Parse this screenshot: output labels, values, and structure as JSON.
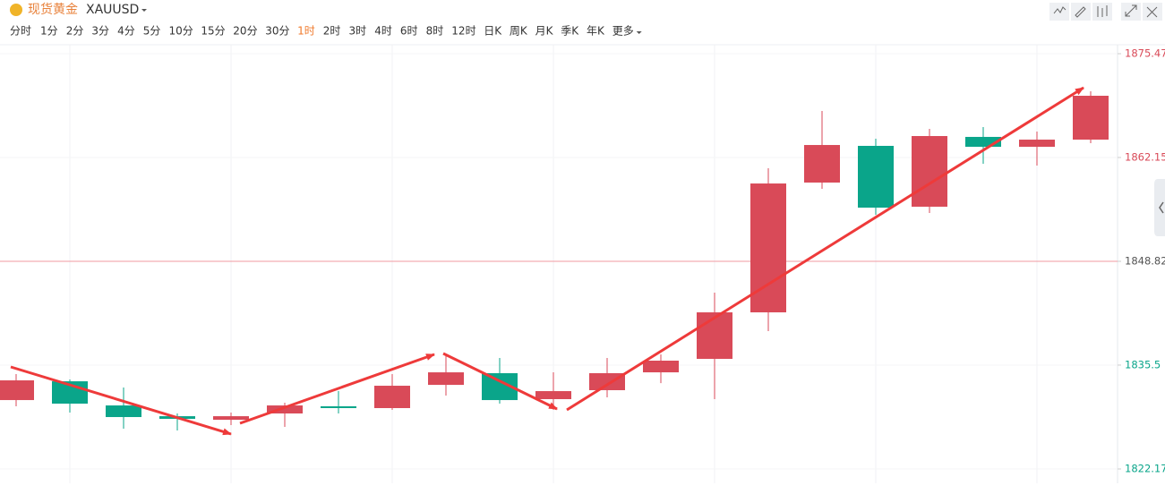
{
  "toolbar": {
    "symbol": "现货黄金",
    "code": "XAUUSD",
    "intervals": [
      "分时",
      "1分",
      "2分",
      "3分",
      "4分",
      "5分",
      "10分",
      "15分",
      "20分",
      "30分",
      "1时",
      "2时",
      "3时",
      "4时",
      "6时",
      "8时",
      "12时",
      "日K",
      "周K",
      "月K",
      "季K",
      "年K"
    ],
    "active": 10,
    "more": "更多"
  },
  "chart_data": {
    "type": "candlestick",
    "open": [
      1831.01,
      1833.42,
      1830.32,
      1828.94,
      1828.48,
      1829.29,
      1830.21,
      1829.98,
      1832.96,
      1834.46,
      1831.13,
      1832.28,
      1834.57,
      1836.3,
      1842.27,
      1858.93,
      1863.64,
      1855.83,
      1864.79,
      1863.52,
      1864.44
    ],
    "high": [
      1834.34,
      1833.65,
      1832.62,
      1829.29,
      1829.4,
      1830.67,
      1832.16,
      1834.34,
      1836.99,
      1836.41,
      1834.57,
      1836.41,
      1836.87,
      1844.8,
      1860.77,
      1868.12,
      1864.56,
      1865.82,
      1866.05,
      1865.48,
      1870.65
    ],
    "low": [
      1830.21,
      1829.4,
      1827.34,
      1827.11,
      1827.8,
      1827.57,
      1829.29,
      1829.75,
      1831.59,
      1830.55,
      1829.75,
      1831.36,
      1833.19,
      1831.13,
      1839.86,
      1858.12,
      1854.79,
      1855.02,
      1861.34,
      1861.11,
      1863.98
    ],
    "close": [
      1833.54,
      1830.55,
      1828.83,
      1828.6,
      1828.94,
      1830.32,
      1829.98,
      1832.85,
      1834.57,
      1831.01,
      1832.16,
      1834.46,
      1836.07,
      1842.27,
      1858.81,
      1863.75,
      1855.71,
      1864.9,
      1863.52,
      1864.44,
      1870.07
    ],
    "up_color": "#d94a58",
    "down_color": "#0aa58a",
    "ylim": [
      1822.17,
      1875.47
    ],
    "yticks": [
      1822.17,
      1835.5,
      {
        "value": 1848.82,
        "label": "1848.82"
      },
      1862.15,
      1875.47
    ],
    "reference_line": 1848.82
  }
}
